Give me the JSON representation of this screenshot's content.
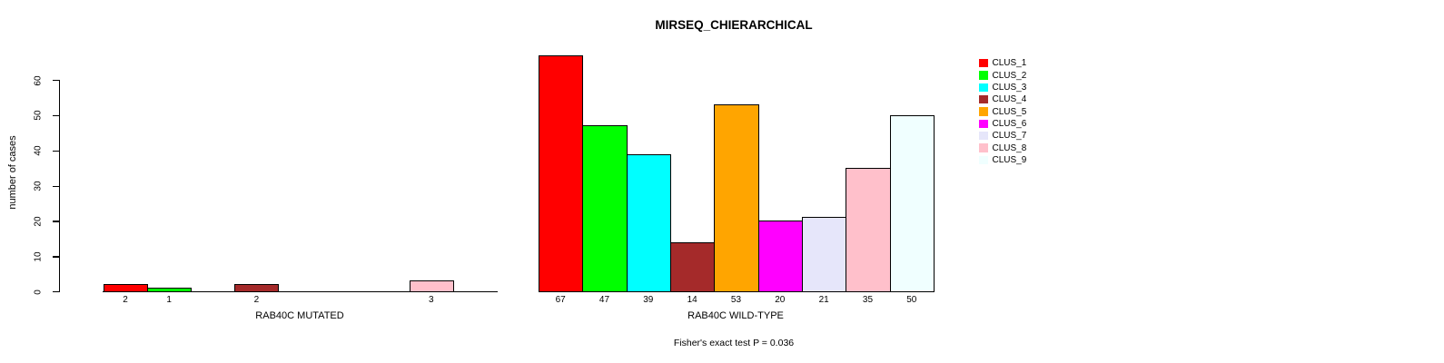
{
  "chart_data": {
    "type": "bar",
    "title": "MIRSEQ_CHIERARCHICAL",
    "ylabel": "number of cases",
    "ylim": [
      0,
      60
    ],
    "yticks": [
      0,
      10,
      20,
      30,
      40,
      50,
      60
    ],
    "grid": false,
    "legend_position": "right",
    "categories": [
      "CLUS_1",
      "CLUS_2",
      "CLUS_3",
      "CLUS_4",
      "CLUS_5",
      "CLUS_6",
      "CLUS_7",
      "CLUS_8",
      "CLUS_9"
    ],
    "series_colors": [
      "#FF0000",
      "#00FF00",
      "#00FFFF",
      "#A52A2A",
      "#FFA500",
      "#FF00FF",
      "#E6E6FA",
      "#FFC0CB",
      "#F0FFFF"
    ],
    "bar_border_color": "#000000",
    "panels": [
      {
        "xlabel": "RAB40C MUTATED",
        "values": [
          2,
          1,
          0,
          2,
          0,
          0,
          0,
          3,
          0
        ],
        "bar_labels": [
          "2",
          "1",
          "",
          "2",
          "",
          "",
          "",
          "3",
          ""
        ]
      },
      {
        "xlabel": "RAB40C WILD-TYPE",
        "values": [
          67,
          47,
          39,
          14,
          53,
          20,
          21,
          35,
          50
        ],
        "bar_labels": [
          "67",
          "47",
          "39",
          "14",
          "53",
          "20",
          "21",
          "35",
          "50"
        ]
      }
    ],
    "annotation": "Fisher's exact test P = 0.036"
  },
  "legend": {
    "items": [
      {
        "label": "CLUS_1",
        "color": "#FF0000"
      },
      {
        "label": "CLUS_2",
        "color": "#00FF00"
      },
      {
        "label": "CLUS_3",
        "color": "#00FFFF"
      },
      {
        "label": "CLUS_4",
        "color": "#A52A2A"
      },
      {
        "label": "CLUS_5",
        "color": "#FFA500"
      },
      {
        "label": "CLUS_6",
        "color": "#FF00FF"
      },
      {
        "label": "CLUS_7",
        "color": "#E6E6FA"
      },
      {
        "label": "CLUS_8",
        "color": "#FFC0CB"
      },
      {
        "label": "CLUS_9",
        "color": "#F0FFFF"
      }
    ]
  }
}
